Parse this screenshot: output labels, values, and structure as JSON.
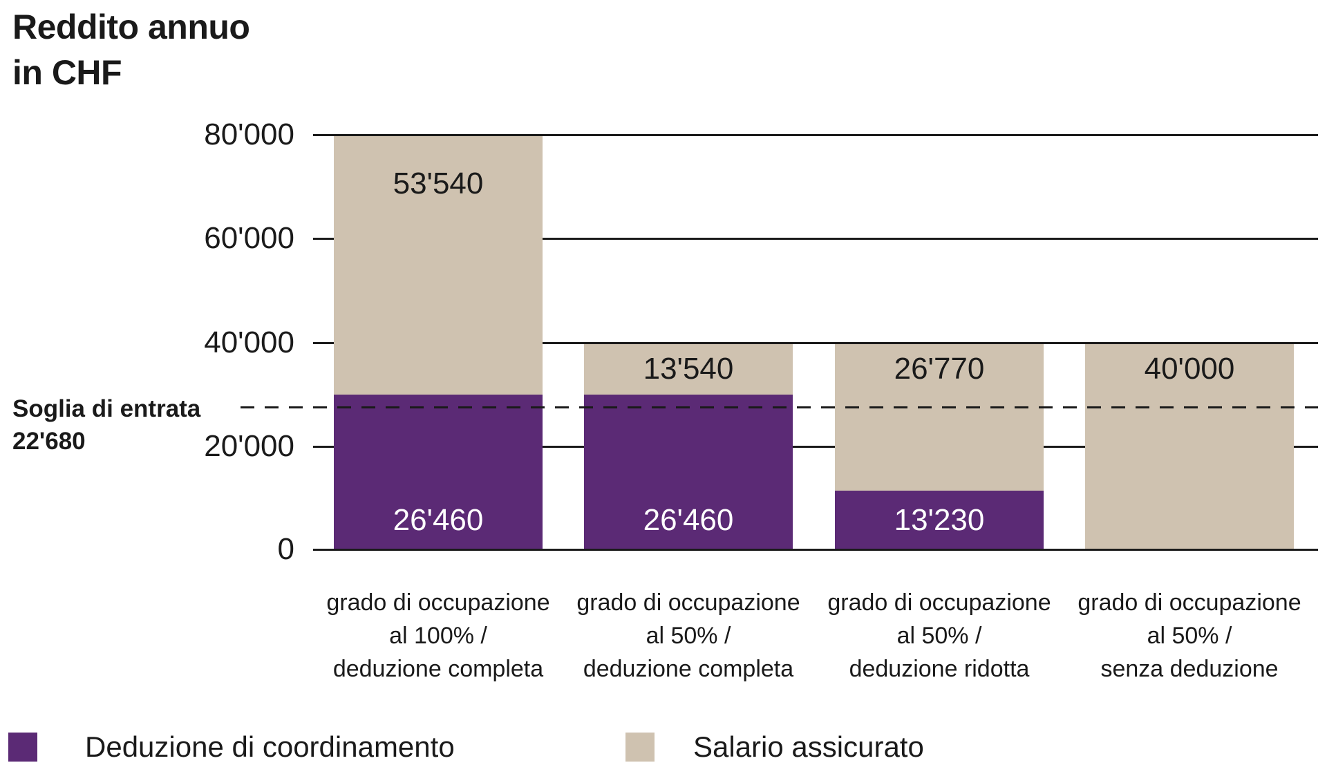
{
  "title": {
    "line1": "Reddito annuo",
    "line2": "in CHF"
  },
  "y_axis": {
    "labels": [
      "80'000",
      "60'000",
      "40'000",
      "20'000",
      "0"
    ]
  },
  "threshold": {
    "line1": "Soglia di entrata",
    "line2": "22'680"
  },
  "bars": [
    {
      "salario_label": "53'540",
      "deduzione_label": "26'460",
      "category": [
        "grado di occupazione",
        "al 100% /",
        "deduzione completa"
      ]
    },
    {
      "salario_label": "13'540",
      "deduzione_label": "26'460",
      "category": [
        "grado di occupazione",
        "al 50% /",
        "deduzione completa"
      ]
    },
    {
      "salario_label": "26'770",
      "deduzione_label": "13'230",
      "category": [
        "grado di occupazione",
        "al 50% /",
        "deduzione ridotta"
      ]
    },
    {
      "salario_label": "40'000",
      "deduzione_label": null,
      "category": [
        "grado di occupazione",
        "al 50% /",
        "senza deduzione"
      ]
    }
  ],
  "legend": [
    {
      "label": "Deduzione di coordinamento",
      "color": "#5B2A75"
    },
    {
      "label": "Salario assicurato",
      "color": "#CFC2B0"
    }
  ],
  "colors": {
    "deduzione": "#5B2A75",
    "salario": "#CFC2B0",
    "text": "#1a1a1a",
    "background": "#ffffff"
  },
  "chart_data": {
    "type": "bar",
    "stacked": true,
    "title": "Reddito annuo in CHF",
    "ylabel": "Reddito annuo in CHF",
    "categories": [
      "grado di occupazione al 100% / deduzione completa",
      "grado di occupazione al 50% / deduzione completa",
      "grado di occupazione al 50% / deduzione ridotta",
      "grado di occupazione al 50% / senza deduzione"
    ],
    "series": [
      {
        "name": "Deduzione di coordinamento",
        "color": "#5B2A75",
        "values": [
          26460,
          26460,
          13230,
          0
        ]
      },
      {
        "name": "Salario assicurato",
        "color": "#CFC2B0",
        "values": [
          53540,
          13540,
          26770,
          40000
        ]
      }
    ],
    "totals": [
      80000,
      40000,
      40000,
      40000
    ],
    "ylim": [
      0,
      80000
    ],
    "yticks": [
      0,
      20000,
      40000,
      60000,
      80000
    ],
    "threshold_line": {
      "label": "Soglia di entrata",
      "value": 22680,
      "style": "dashed"
    },
    "grid": "horizontal",
    "legend_position": "bottom"
  }
}
